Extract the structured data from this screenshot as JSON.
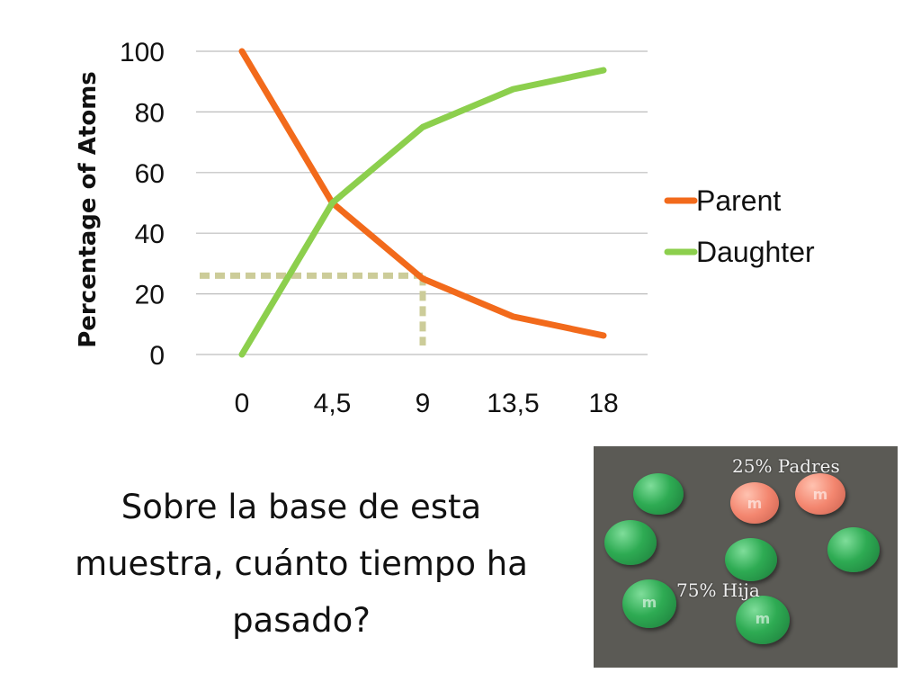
{
  "chart_data": {
    "type": "line",
    "title": "",
    "xlabel": "",
    "ylabel": "Percentage of Atoms",
    "categories": [
      "0",
      "4,5",
      "9",
      "13,5",
      "18"
    ],
    "ylim": [
      0,
      100
    ],
    "yticks": [
      0,
      20,
      40,
      60,
      80,
      100
    ],
    "grid": true,
    "legend_position": "right",
    "series": [
      {
        "name": "Parent",
        "values": [
          100,
          50,
          25,
          12.5,
          6.25
        ],
        "color": "#f26a1b"
      },
      {
        "name": "Daughter",
        "values": [
          0,
          50,
          75,
          87.5,
          93.75
        ],
        "color": "#8ccf4d"
      }
    ],
    "annotation": {
      "type": "dashed-guide",
      "x_index": 2,
      "y_value": 26,
      "color": "#cccc99"
    }
  },
  "question": {
    "lines": [
      "Sobre la base de esta",
      "muestra, cuánto tiempo ha",
      "pasado?"
    ]
  },
  "photo": {
    "label_parents": "25% Padres",
    "label_daughter": "75% Hija",
    "parent_count": 2,
    "daughter_count": 6
  }
}
